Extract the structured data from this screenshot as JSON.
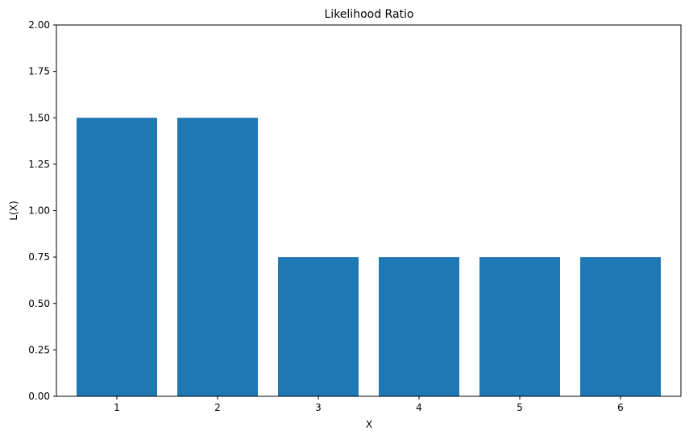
{
  "chart_data": {
    "type": "bar",
    "title": "Likelihood Ratio",
    "xlabel": "X",
    "ylabel": "L(X)",
    "categories": [
      "1",
      "2",
      "3",
      "4",
      "5",
      "6"
    ],
    "values": [
      1.5,
      1.5,
      0.75,
      0.75,
      0.75,
      0.75
    ],
    "ylim": [
      0,
      2.0
    ],
    "yticks": [
      "0.00",
      "0.25",
      "0.50",
      "0.75",
      "1.00",
      "1.25",
      "1.50",
      "1.75",
      "2.00"
    ],
    "bar_color": "#1f77b4",
    "grid": false,
    "legend": "none"
  }
}
